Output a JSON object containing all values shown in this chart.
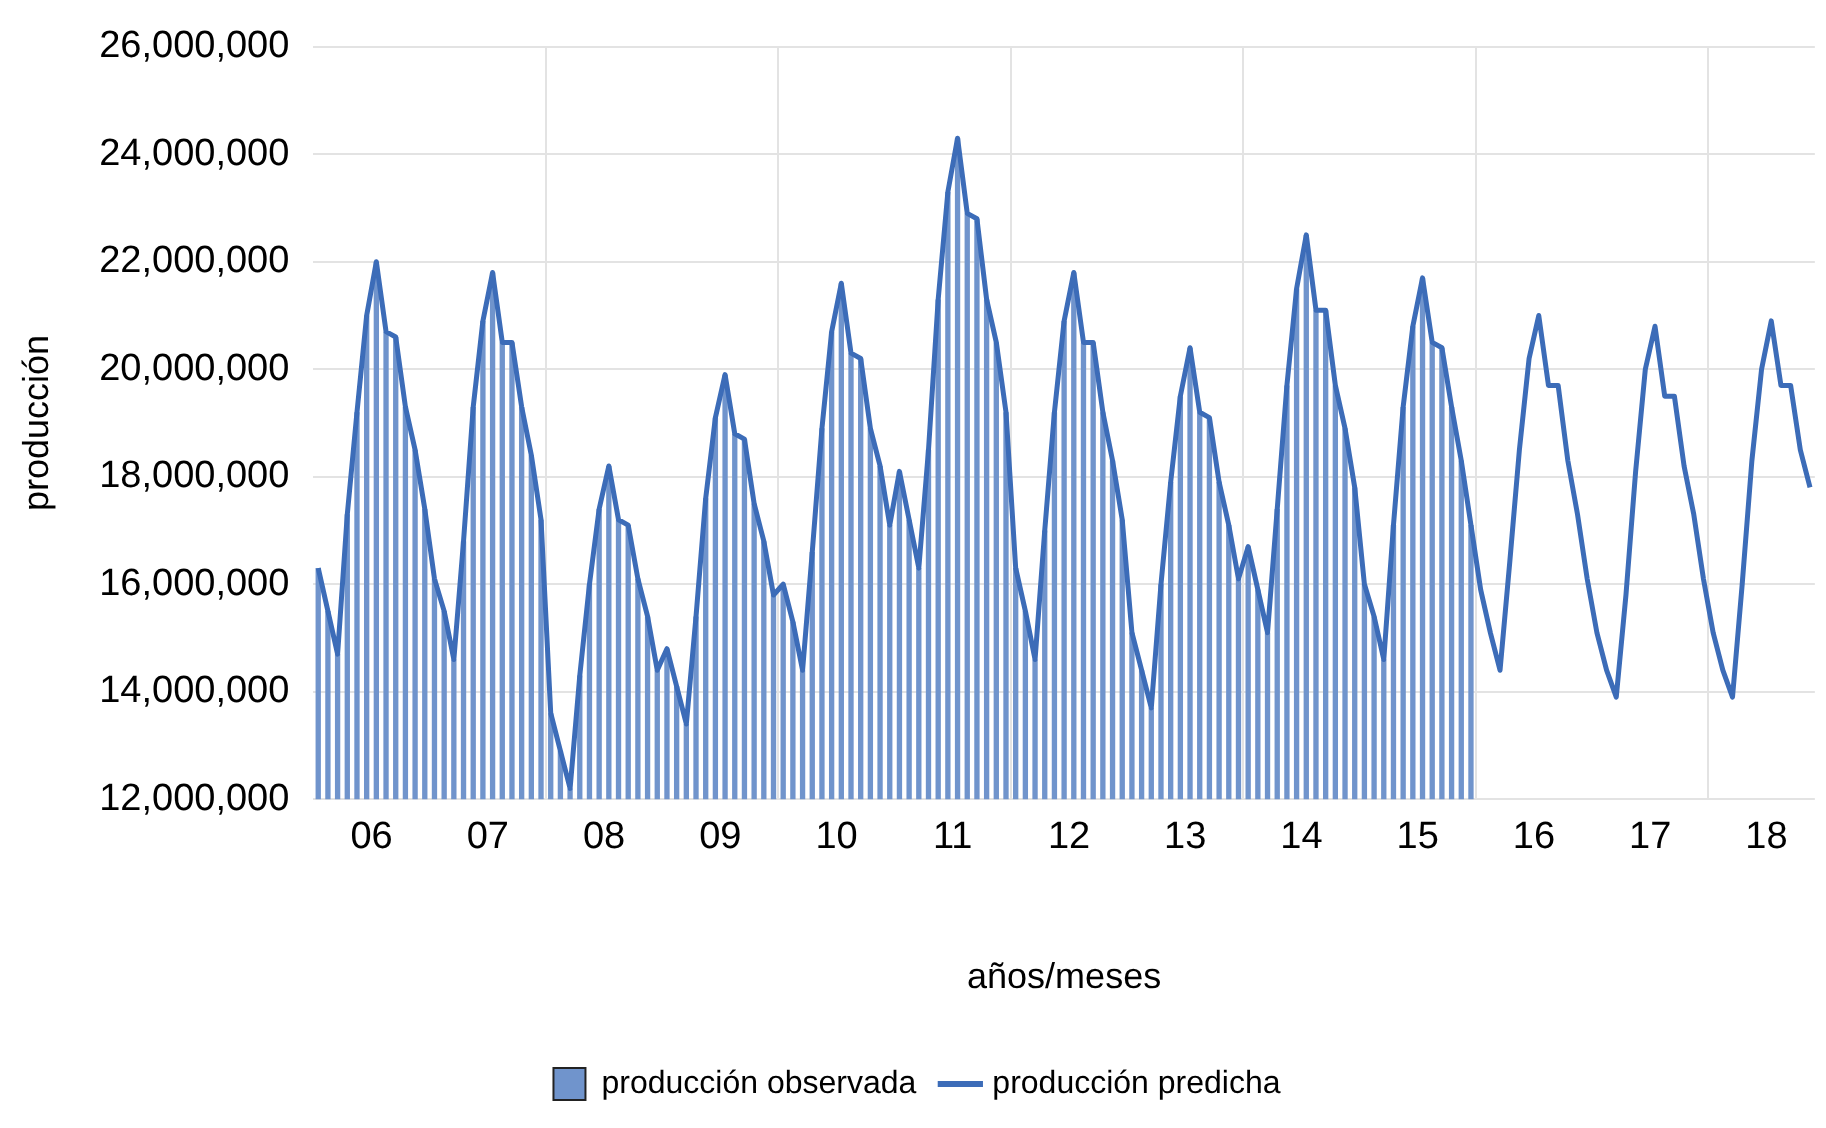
{
  "chart_data": {
    "type": "bar",
    "xlabel": "años/meses",
    "ylabel": "producción",
    "categories": [
      null,
      null,
      null,
      null,
      null,
      null,
      "06",
      null,
      null,
      null,
      null,
      null,
      null,
      null,
      null,
      null,
      null,
      null,
      "07",
      null,
      null,
      null,
      null,
      null,
      null,
      null,
      null,
      null,
      null,
      null,
      "08",
      null,
      null,
      null,
      null,
      null,
      null,
      null,
      null,
      null,
      null,
      null,
      "09",
      null,
      null,
      null,
      null,
      null,
      null,
      null,
      null,
      null,
      null,
      null,
      "10",
      null,
      null,
      null,
      null,
      null,
      null,
      null,
      null,
      null,
      null,
      null,
      "11",
      null,
      null,
      null,
      null,
      null,
      null,
      null,
      null,
      null,
      null,
      null,
      "12",
      null,
      null,
      null,
      null,
      null,
      null,
      null,
      null,
      null,
      null,
      null,
      "13",
      null,
      null,
      null,
      null,
      null,
      null,
      null,
      null,
      null,
      null,
      null,
      "14",
      null,
      null,
      null,
      null,
      null,
      null,
      null,
      null,
      null,
      null,
      null,
      "15",
      null,
      null,
      null,
      null,
      null,
      null,
      null,
      null,
      null,
      null,
      null,
      "16",
      null,
      null,
      null,
      null,
      null,
      null,
      null,
      null,
      null,
      null,
      null,
      "17",
      null,
      null,
      null,
      null,
      null,
      null,
      null,
      null,
      null,
      null,
      null,
      "18",
      null,
      null,
      null,
      null
    ],
    "series": [
      {
        "name": "producción observada",
        "color": "#7094cc",
        "values": [
          16300000,
          15500000,
          14700000,
          17300000,
          19200000,
          21000000,
          22000000,
          20700000,
          20600000,
          19300000,
          18500000,
          17400000,
          16100000,
          15500000,
          14600000,
          16800000,
          19300000,
          20900000,
          21800000,
          20500000,
          20500000,
          19300000,
          18400000,
          17200000,
          13600000,
          12900000,
          12200000,
          14300000,
          16000000,
          17400000,
          18200000,
          17200000,
          17100000,
          16100000,
          15400000,
          14400000,
          14800000,
          14100000,
          13400000,
          15400000,
          17600000,
          19100000,
          19900000,
          18800000,
          18700000,
          17500000,
          16800000,
          15800000,
          16000000,
          15300000,
          14400000,
          16600000,
          18900000,
          20700000,
          21600000,
          20300000,
          20200000,
          18900000,
          18200000,
          17100000,
          18100000,
          17200000,
          16300000,
          18500000,
          21300000,
          23300000,
          24300000,
          22900000,
          22800000,
          21300000,
          20500000,
          19200000,
          16300000,
          15500000,
          14600000,
          17000000,
          19200000,
          20900000,
          21800000,
          20500000,
          20500000,
          19200000,
          18300000,
          17200000,
          15100000,
          14400000,
          13700000,
          16000000,
          17900000,
          19500000,
          20400000,
          19200000,
          19100000,
          17900000,
          17100000,
          16100000,
          16700000,
          15900000,
          15100000,
          17400000,
          19700000,
          21500000,
          22500000,
          21100000,
          21100000,
          19700000,
          18900000,
          17800000,
          16000000,
          15400000,
          14600000,
          17100000,
          19300000,
          20800000,
          21700000,
          20500000,
          20400000,
          19300000,
          18300000,
          17100000,
          null,
          null,
          null,
          null,
          null,
          null,
          null,
          null,
          null,
          null,
          null,
          null,
          null,
          null,
          null,
          null,
          null,
          null,
          null,
          null,
          null,
          null,
          null,
          null,
          null,
          null,
          null,
          null,
          null,
          null,
          null,
          null,
          null,
          null,
          null
        ]
      },
      {
        "name": "producción predicha",
        "type": "line",
        "color": "#3c6cb8",
        "values": [
          16300000,
          15500000,
          14700000,
          17300000,
          19200000,
          21000000,
          22000000,
          20700000,
          20600000,
          19300000,
          18500000,
          17400000,
          16100000,
          15500000,
          14600000,
          16800000,
          19300000,
          20900000,
          21800000,
          20500000,
          20500000,
          19300000,
          18400000,
          17200000,
          13600000,
          12900000,
          12200000,
          14300000,
          16000000,
          17400000,
          18200000,
          17200000,
          17100000,
          16100000,
          15400000,
          14400000,
          14800000,
          14100000,
          13400000,
          15400000,
          17600000,
          19100000,
          19900000,
          18800000,
          18700000,
          17500000,
          16800000,
          15800000,
          16000000,
          15300000,
          14400000,
          16600000,
          18900000,
          20700000,
          21600000,
          20300000,
          20200000,
          18900000,
          18200000,
          17100000,
          18100000,
          17200000,
          16300000,
          18500000,
          21300000,
          23300000,
          24300000,
          22900000,
          22800000,
          21300000,
          20500000,
          19200000,
          16300000,
          15500000,
          14600000,
          17000000,
          19200000,
          20900000,
          21800000,
          20500000,
          20500000,
          19200000,
          18300000,
          17200000,
          15100000,
          14400000,
          13700000,
          16000000,
          17900000,
          19500000,
          20400000,
          19200000,
          19100000,
          17900000,
          17100000,
          16100000,
          16700000,
          15900000,
          15100000,
          17400000,
          19700000,
          21500000,
          22500000,
          21100000,
          21100000,
          19700000,
          18900000,
          17800000,
          16000000,
          15400000,
          14600000,
          17100000,
          19300000,
          20800000,
          21700000,
          20500000,
          20400000,
          19300000,
          18300000,
          17100000,
          15900000,
          15100000,
          14400000,
          16400000,
          18500000,
          20200000,
          21000000,
          19700000,
          19700000,
          18300000,
          17300000,
          16100000,
          15100000,
          14400000,
          13900000,
          15800000,
          18100000,
          20000000,
          20800000,
          19500000,
          19500000,
          18200000,
          17300000,
          16100000,
          15100000,
          14400000,
          13900000,
          16000000,
          18300000,
          20000000,
          20900000,
          19700000,
          19700000,
          18500000,
          17800000
        ]
      }
    ],
    "ylim": [
      12000000,
      26000000
    ],
    "yticks": [
      {
        "value": 12000000,
        "label": "12,000,000"
      },
      {
        "value": 14000000,
        "label": "14,000,000"
      },
      {
        "value": 16000000,
        "label": "16,000,000"
      },
      {
        "value": 18000000,
        "label": "18,000,000"
      },
      {
        "value": 20000000,
        "label": "20,000,000"
      },
      {
        "value": 22000000,
        "label": "22,000,000"
      },
      {
        "value": 24000000,
        "label": "24,000,000"
      },
      {
        "value": 26000000,
        "label": "26,000,000"
      }
    ],
    "grid": true,
    "legend": "bottom",
    "marker": "none"
  }
}
